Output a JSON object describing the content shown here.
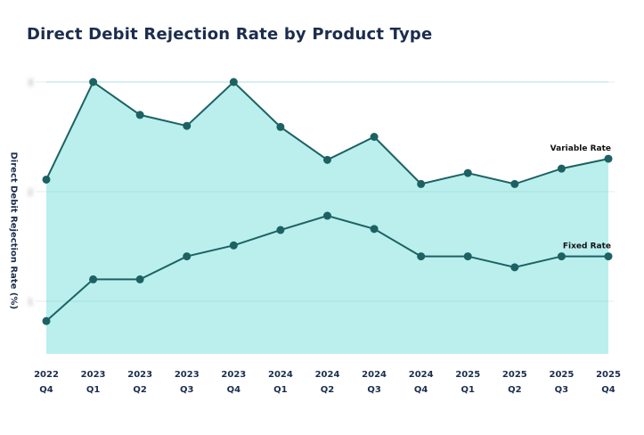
{
  "chart_data": {
    "type": "area",
    "title": "Direct Debit Rejection Rate by Product Type",
    "xlabel": "",
    "ylabel": "Direct Debit  Rejection Rate (%)",
    "categories": [
      [
        "2022",
        "Q4"
      ],
      [
        "2023",
        "Q1"
      ],
      [
        "2023",
        "Q2"
      ],
      [
        "2023",
        "Q3"
      ],
      [
        "2023",
        "Q4"
      ],
      [
        "2024",
        "Q1"
      ],
      [
        "2024",
        "Q2"
      ],
      [
        "2024",
        "Q3"
      ],
      [
        "2024",
        "Q4"
      ],
      [
        "2025",
        "Q1"
      ],
      [
        "2025",
        "Q2"
      ],
      [
        "2025",
        "Q3"
      ],
      [
        "2025",
        "Q4"
      ]
    ],
    "yticks": [
      3,
      2,
      1
    ],
    "ytick_labels_redacted": true,
    "ylim": [
      0.52,
      3.0
    ],
    "grid": true,
    "series": [
      {
        "name": "Variable Rate",
        "values": [
          2.11,
          3.0,
          2.7,
          2.6,
          3.0,
          2.59,
          2.29,
          2.5,
          2.07,
          2.17,
          2.07,
          2.21,
          2.3
        ],
        "filled": true
      },
      {
        "name": "Fixed Rate",
        "values": [
          0.82,
          1.2,
          1.2,
          1.41,
          1.51,
          1.65,
          1.78,
          1.66,
          1.41,
          1.41,
          1.31,
          1.41,
          1.41
        ],
        "filled": false
      }
    ],
    "colors": {
      "line": "#1d6263",
      "fill": "#aeeceb",
      "grid": "#e6eeee",
      "title": "#1b2d4d"
    }
  }
}
